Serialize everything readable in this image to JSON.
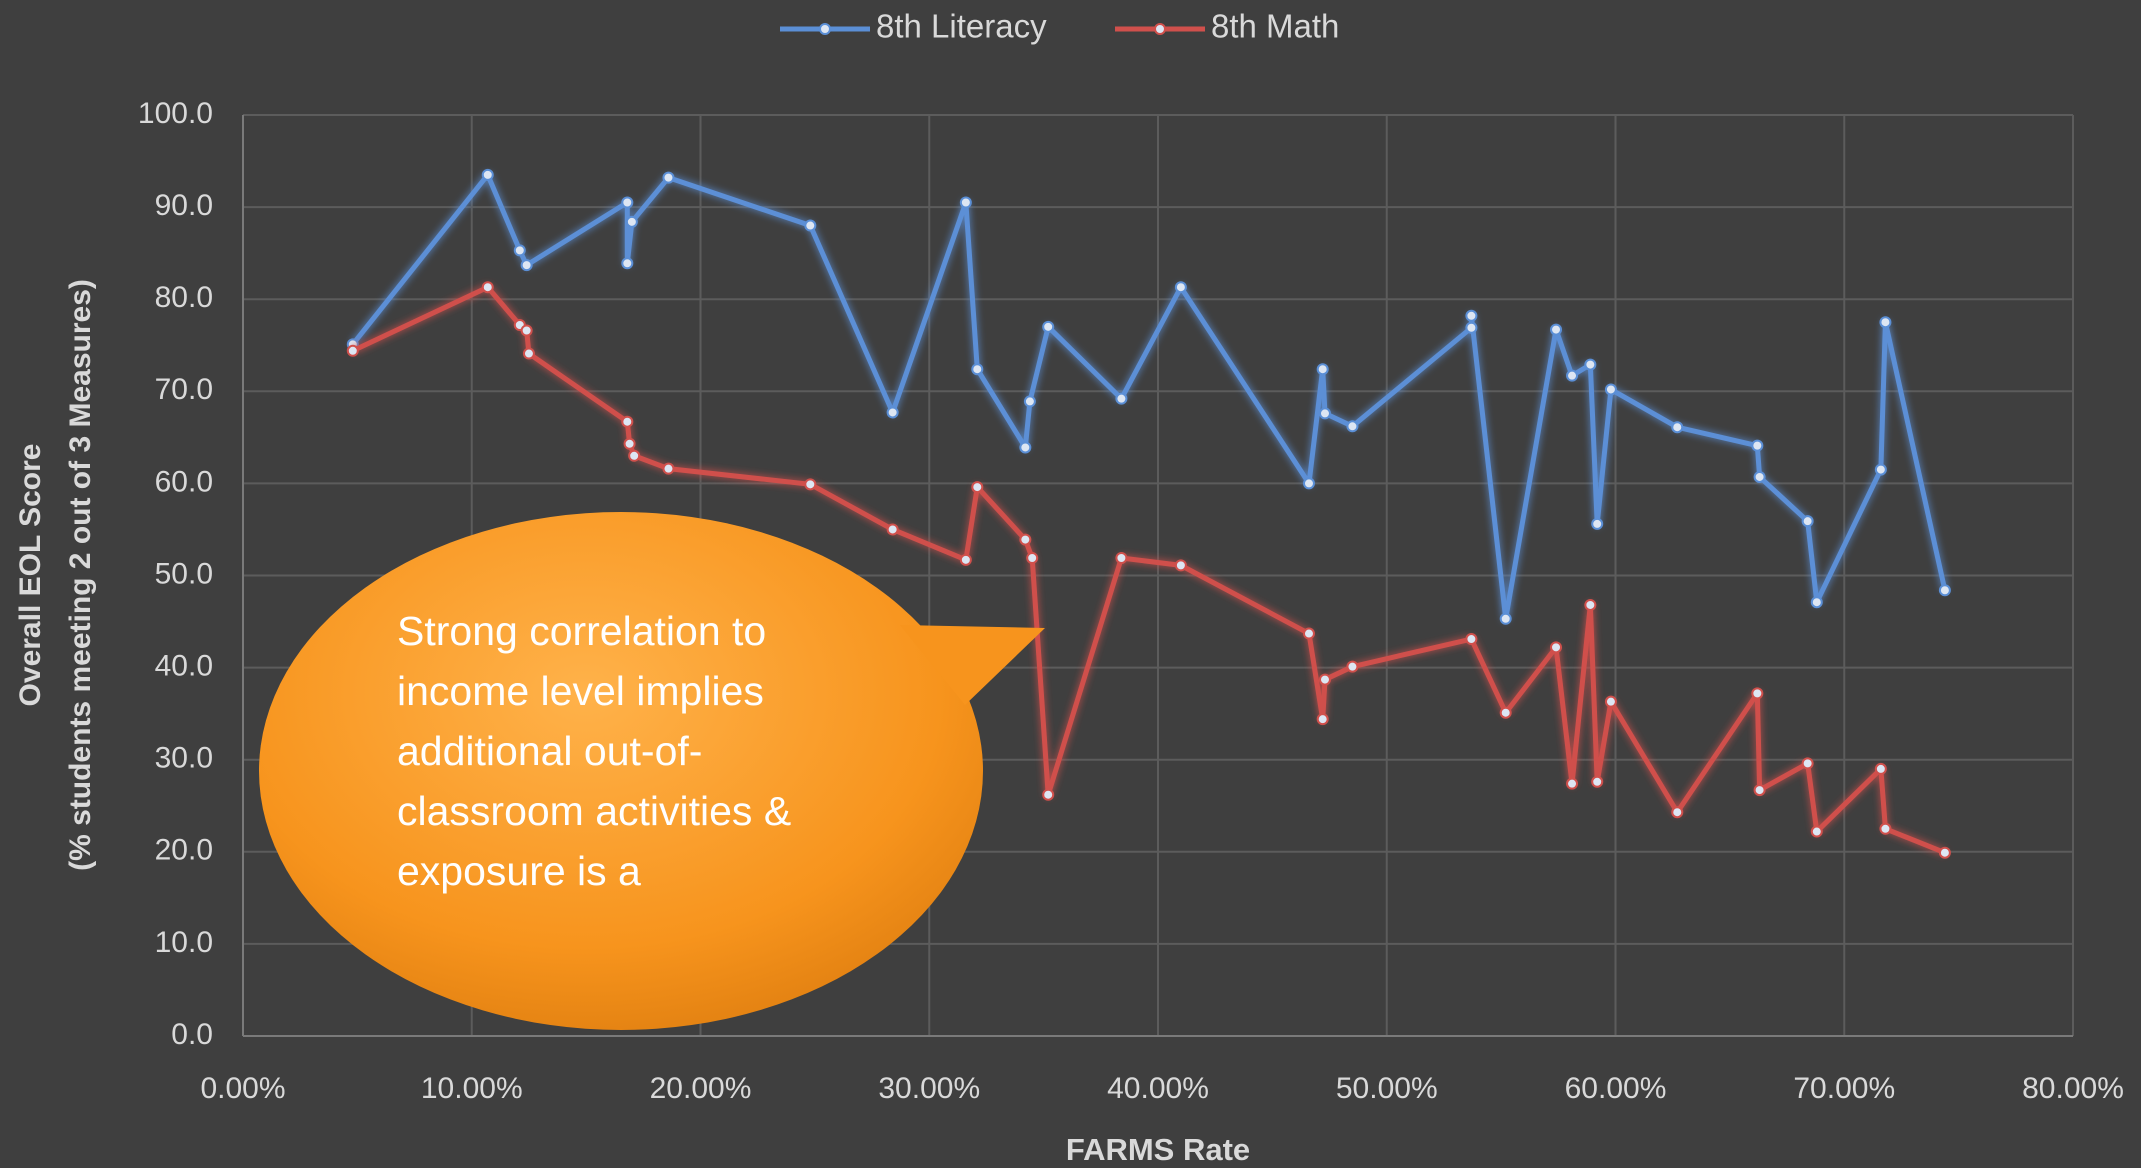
{
  "chart_data": {
    "type": "line",
    "xlabel": "FARMS Rate",
    "ylabel": [
      "Overall EOL Score",
      "(% students meeting 2 out of 3 Measures)"
    ],
    "xlim": [
      0,
      80
    ],
    "xticks": [
      {
        "value": 0,
        "label": "0.00%"
      },
      {
        "value": 10,
        "label": "10.00%"
      },
      {
        "value": 20,
        "label": "20.00%"
      },
      {
        "value": 30,
        "label": "30.00%"
      },
      {
        "value": 40,
        "label": "40.00%"
      },
      {
        "value": 50,
        "label": "50.00%"
      },
      {
        "value": 60,
        "label": "60.00%"
      },
      {
        "value": 70,
        "label": "70.00%"
      },
      {
        "value": 80,
        "label": "80.00%"
      }
    ],
    "ylim": [
      0,
      100
    ],
    "yticks": [
      {
        "value": 0,
        "label": "0.0"
      },
      {
        "value": 10,
        "label": "10.0"
      },
      {
        "value": 20,
        "label": "20.0"
      },
      {
        "value": 30,
        "label": "30.0"
      },
      {
        "value": 40,
        "label": "40.0"
      },
      {
        "value": 50,
        "label": "50.0"
      },
      {
        "value": 60,
        "label": "60.0"
      },
      {
        "value": 70,
        "label": "70.0"
      },
      {
        "value": 80,
        "label": "80.0"
      },
      {
        "value": 90,
        "label": "90.0"
      },
      {
        "value": 100,
        "label": "100.0"
      }
    ],
    "grid": true,
    "legend": "top",
    "series": [
      {
        "name": "8th Literacy",
        "color": "#5b8fd6",
        "x": [
          4.8,
          10.7,
          12.1,
          12.4,
          16.8,
          16.8,
          17.0,
          18.6,
          24.8,
          28.4,
          31.6,
          32.1,
          34.2,
          34.4,
          35.2,
          38.4,
          41.0,
          46.6,
          47.2,
          47.3,
          48.5,
          53.7,
          53.7,
          55.2,
          57.4,
          58.1,
          58.9,
          59.2,
          59.8,
          62.7,
          66.2,
          66.3,
          68.4,
          68.8,
          71.6,
          71.8,
          74.4
        ],
        "values": [
          75.1,
          93.5,
          85.3,
          83.7,
          90.5,
          83.9,
          88.4,
          93.2,
          88.0,
          67.7,
          90.5,
          72.4,
          63.9,
          68.9,
          77.0,
          69.2,
          81.3,
          60.0,
          72.4,
          67.6,
          66.2,
          76.9,
          78.2,
          45.3,
          76.7,
          71.7,
          72.9,
          55.6,
          70.2,
          66.1,
          64.1,
          60.7,
          55.9,
          47.1,
          61.5,
          77.5,
          48.4
        ]
      },
      {
        "name": "8th Math",
        "color": "#d0504c",
        "x": [
          4.8,
          10.7,
          12.1,
          12.4,
          12.5,
          16.8,
          16.9,
          17.1,
          18.6,
          24.8,
          28.4,
          31.6,
          32.1,
          34.2,
          34.5,
          35.2,
          38.4,
          41.0,
          46.6,
          47.2,
          47.3,
          48.5,
          53.7,
          55.2,
          57.4,
          58.1,
          58.9,
          59.2,
          59.8,
          62.7,
          66.2,
          66.3,
          68.4,
          68.8,
          71.6,
          71.8,
          74.4
        ],
        "values": [
          74.4,
          81.3,
          77.2,
          76.6,
          74.1,
          66.7,
          64.3,
          63.0,
          61.6,
          59.9,
          55.0,
          51.7,
          59.6,
          53.9,
          51.9,
          26.2,
          51.9,
          51.1,
          43.7,
          34.4,
          38.7,
          40.1,
          43.1,
          35.1,
          42.2,
          27.4,
          46.8,
          27.6,
          36.3,
          24.3,
          37.2,
          26.7,
          29.6,
          22.2,
          29.0,
          22.5,
          19.9
        ]
      }
    ],
    "annotation": {
      "lines": [
        "Strong correlation to",
        "income level implies",
        "additional out-of-",
        "classroom activities &",
        "exposure is a"
      ]
    }
  }
}
